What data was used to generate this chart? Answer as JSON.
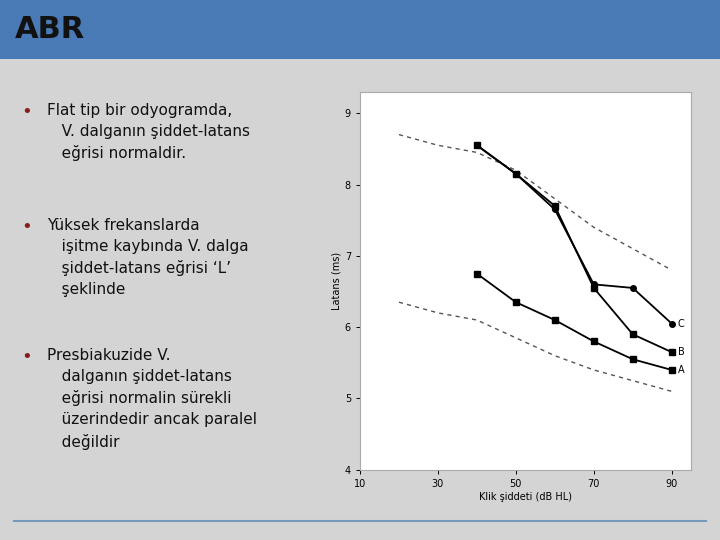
{
  "title": "ABR",
  "header_bar_color": "#4a7ab5",
  "slide_bg": "#d4d4d4",
  "bullet_color": "#8b1a1a",
  "text_color": "#111111",
  "bullets": [
    "Flat tip bir odyogramda,\n   V. dalganın şiddet-latans\n   eğrisi normaldir.",
    "Yüksek frekanslarda\n   işitme kaybında V. dalga\n   şiddet-latans eğrisi ‘L’\n   şeklinde",
    "Presbiakuzide V.\n   dalganın şiddet-latans\n   eğrisi normalin sürekli\n   üzerindedir ancak paralel\n   değildir"
  ],
  "chart": {
    "xlabel": "Klik şiddeti (dB HL)",
    "ylabel": "Latans (ms)",
    "xlim": [
      10,
      95
    ],
    "ylim": [
      4,
      9.3
    ],
    "xticks": [
      10,
      30,
      50,
      70,
      90
    ],
    "yticks": [
      4,
      5,
      6,
      7,
      8,
      9
    ],
    "curve_A_x": [
      40,
      50,
      60,
      70,
      80,
      90
    ],
    "curve_A_y": [
      6.75,
      6.35,
      6.1,
      5.8,
      5.55,
      5.4
    ],
    "curve_B_x": [
      40,
      50,
      60,
      70,
      80,
      90
    ],
    "curve_B_y": [
      8.55,
      8.15,
      7.7,
      6.55,
      5.9,
      5.65
    ],
    "curve_C_x": [
      40,
      50,
      60,
      70,
      80,
      90
    ],
    "curve_C_y": [
      8.55,
      8.15,
      7.65,
      6.6,
      6.55,
      6.05
    ],
    "dotted_upper_x": [
      20,
      30,
      40,
      50,
      60,
      70,
      80,
      90
    ],
    "dotted_upper_y": [
      8.7,
      8.55,
      8.45,
      8.2,
      7.8,
      7.4,
      7.1,
      6.8
    ],
    "dotted_lower_x": [
      20,
      30,
      40,
      50,
      60,
      70,
      80,
      90
    ],
    "dotted_lower_y": [
      6.35,
      6.2,
      6.1,
      5.85,
      5.6,
      5.4,
      5.25,
      5.1
    ],
    "label_A": "A",
    "label_B": "B",
    "label_C": "C"
  },
  "bottom_line_color": "#7799bb",
  "font_size_title": 22,
  "font_size_bullet": 11,
  "font_size_chart": 7
}
